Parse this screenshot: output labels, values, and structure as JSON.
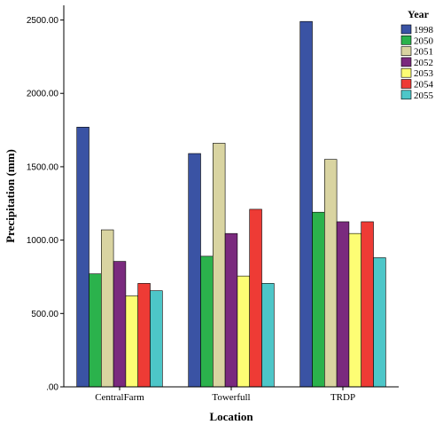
{
  "chart_data": {
    "type": "bar",
    "xlabel": "Location",
    "ylabel": "Precipitation (mm)",
    "ylim": [
      0,
      2600
    ],
    "yticks": [
      0,
      500,
      1000,
      1500,
      2000,
      2500
    ],
    "ytick_labels": [
      ".00",
      "500.00",
      "1000.00",
      "1500.00",
      "2000.00",
      "2500.00"
    ],
    "categories": [
      "CentralFarm",
      "Towerfull",
      "TRDP"
    ],
    "legend_title": "Year",
    "legend_position": "top-right",
    "grid": false,
    "series": [
      {
        "name": "1998",
        "color": "#3a53a4",
        "values": [
          1770,
          1590,
          2490
        ]
      },
      {
        "name": "2050",
        "color": "#2bb24c",
        "values": [
          770,
          890,
          1190
        ]
      },
      {
        "name": "2051",
        "color": "#d9d4a1",
        "values": [
          1070,
          1660,
          1550
        ]
      },
      {
        "name": "2052",
        "color": "#7a2a7e",
        "values": [
          855,
          1045,
          1125
        ]
      },
      {
        "name": "2053",
        "color": "#fdfd74",
        "values": [
          620,
          755,
          1045
        ]
      },
      {
        "name": "2054",
        "color": "#ee3b35",
        "values": [
          705,
          1210,
          1125
        ]
      },
      {
        "name": "2055",
        "color": "#4dc6c8",
        "values": [
          655,
          705,
          880
        ]
      }
    ]
  }
}
